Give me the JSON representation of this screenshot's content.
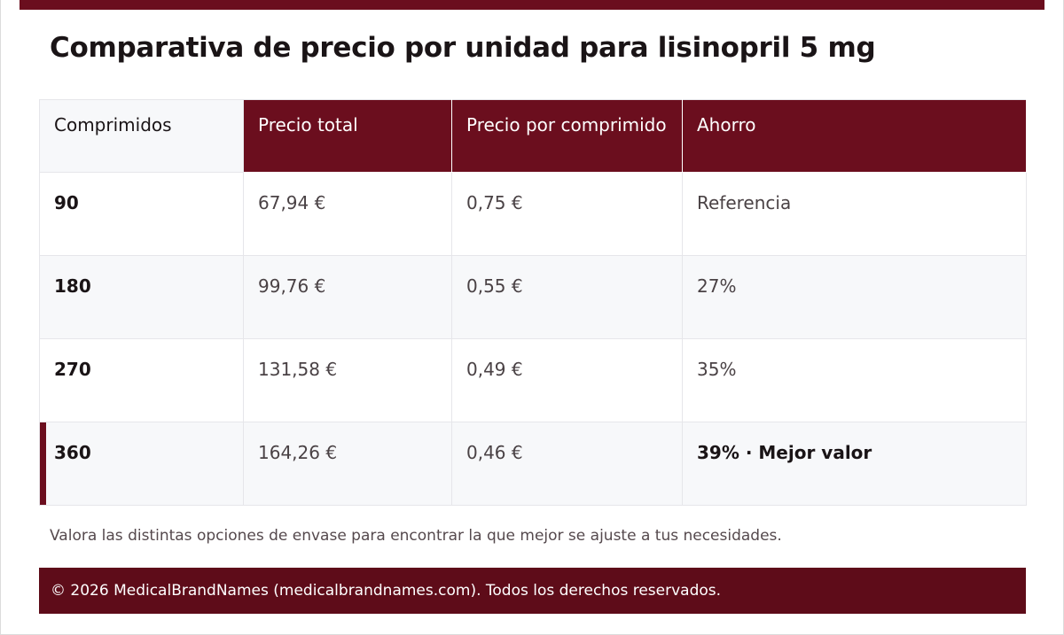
{
  "title": "Comparativa de precio por unidad para lisinopril 5 mg",
  "table": {
    "headers": [
      "Comprimidos",
      "Precio total",
      "Precio por comprimido",
      "Ahorro"
    ],
    "rows": [
      {
        "qty": "90",
        "total": "67,94 €",
        "per_unit": "0,75 €",
        "saving": "Referencia"
      },
      {
        "qty": "180",
        "total": "99,76 €",
        "per_unit": "0,55 €",
        "saving": "27%"
      },
      {
        "qty": "270",
        "total": "131,58 €",
        "per_unit": "0,49 €",
        "saving": "35%"
      },
      {
        "qty": "360",
        "total": "164,26 €",
        "per_unit": "0,46 €",
        "saving": "39% · Mejor valor"
      }
    ]
  },
  "note": "Valora las distintas opciones de envase para encontrar la que mejor se ajuste a tus necesidades.",
  "footer": "© 2026 MedicalBrandNames (medicalbrandnames.com). Todos los derechos reservados.",
  "colors": {
    "accent": "#6b0e1e",
    "footer_bg": "#5e0c19",
    "alt_row": "#f7f8fa"
  }
}
